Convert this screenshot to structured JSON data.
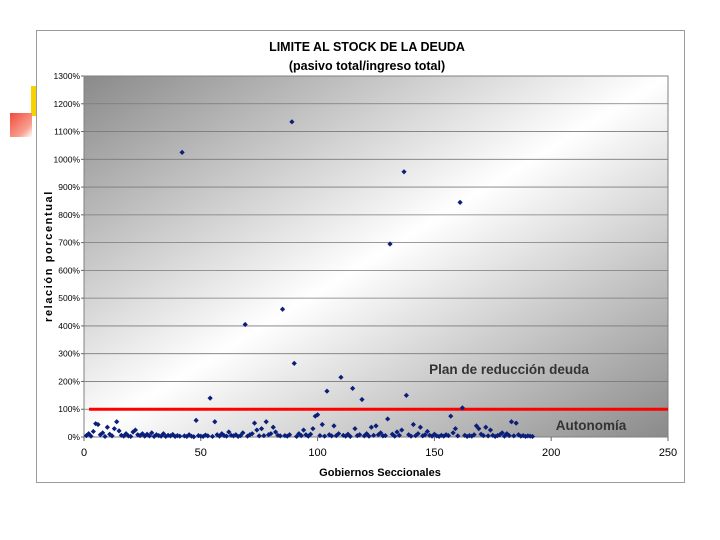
{
  "chart_data": {
    "type": "scatter",
    "title": "LIMITE AL STOCK DE LA DEUDA",
    "subtitle": "(pasivo total/ingreso total)",
    "xlabel": "Gobiernos Seccionales",
    "ylabel": "relación porcentual",
    "xlim": [
      0,
      250
    ],
    "ylim": [
      0,
      1300
    ],
    "x_ticks": [
      "0",
      "50",
      "100",
      "150",
      "200",
      "250"
    ],
    "x_tick_values": [
      0,
      50,
      100,
      150,
      200,
      250
    ],
    "y_ticks": [
      "0%",
      "100%",
      "200%",
      "300%",
      "400%",
      "500%",
      "600%",
      "700%",
      "800%",
      "900%",
      "1000%",
      "1100%",
      "1200%",
      "1300%"
    ],
    "y_tick_values": [
      0,
      100,
      200,
      300,
      400,
      500,
      600,
      700,
      800,
      900,
      1000,
      1100,
      1200,
      1300
    ],
    "grid": "horizontal",
    "reference_line": {
      "y": 100,
      "color": "#ff0000"
    },
    "annotations": {
      "upper": "Plan de reducción deuda",
      "lower": "Autonomía"
    },
    "marker_color": "#0a1e7a",
    "series": [
      {
        "points": [
          [
            1,
            5
          ],
          [
            2,
            12
          ],
          [
            3,
            3
          ],
          [
            4,
            20
          ],
          [
            5,
            48
          ],
          [
            6,
            45
          ],
          [
            7,
            8
          ],
          [
            8,
            15
          ],
          [
            9,
            2
          ],
          [
            10,
            35
          ],
          [
            11,
            10
          ],
          [
            12,
            4
          ],
          [
            13,
            30
          ],
          [
            14,
            55
          ],
          [
            15,
            22
          ],
          [
            16,
            6
          ],
          [
            17,
            3
          ],
          [
            18,
            12
          ],
          [
            19,
            4
          ],
          [
            20,
            2
          ],
          [
            21,
            18
          ],
          [
            22,
            25
          ],
          [
            23,
            8
          ],
          [
            24,
            5
          ],
          [
            25,
            12
          ],
          [
            26,
            3
          ],
          [
            27,
            10
          ],
          [
            28,
            4
          ],
          [
            29,
            15
          ],
          [
            30,
            2
          ],
          [
            31,
            8
          ],
          [
            32,
            5
          ],
          [
            33,
            3
          ],
          [
            34,
            12
          ],
          [
            35,
            2
          ],
          [
            36,
            6
          ],
          [
            37,
            4
          ],
          [
            38,
            9
          ],
          [
            39,
            2
          ],
          [
            40,
            5
          ],
          [
            41,
            3
          ],
          [
            42,
            1025
          ],
          [
            43,
            4
          ],
          [
            44,
            2
          ],
          [
            45,
            8
          ],
          [
            46,
            3
          ],
          [
            47,
            1
          ],
          [
            48,
            60
          ],
          [
            49,
            5
          ],
          [
            50,
            3
          ],
          [
            51,
            2
          ],
          [
            52,
            7
          ],
          [
            53,
            4
          ],
          [
            54,
            140
          ],
          [
            55,
            2
          ],
          [
            56,
            55
          ],
          [
            57,
            8
          ],
          [
            58,
            3
          ],
          [
            59,
            12
          ],
          [
            60,
            5
          ],
          [
            61,
            3
          ],
          [
            62,
            18
          ],
          [
            63,
            6
          ],
          [
            64,
            4
          ],
          [
            65,
            8
          ],
          [
            66,
            2
          ],
          [
            67,
            5
          ],
          [
            68,
            15
          ],
          [
            69,
            405
          ],
          [
            70,
            3
          ],
          [
            71,
            8
          ],
          [
            72,
            12
          ],
          [
            73,
            50
          ],
          [
            74,
            25
          ],
          [
            75,
            4
          ],
          [
            76,
            30
          ],
          [
            77,
            5
          ],
          [
            78,
            55
          ],
          [
            79,
            8
          ],
          [
            80,
            12
          ],
          [
            81,
            35
          ],
          [
            82,
            18
          ],
          [
            83,
            6
          ],
          [
            84,
            4
          ],
          [
            85,
            460
          ],
          [
            86,
            5
          ],
          [
            87,
            3
          ],
          [
            88,
            8
          ],
          [
            89,
            1135
          ],
          [
            90,
            265
          ],
          [
            91,
            2
          ],
          [
            92,
            12
          ],
          [
            93,
            5
          ],
          [
            94,
            25
          ],
          [
            95,
            8
          ],
          [
            96,
            3
          ],
          [
            97,
            10
          ],
          [
            98,
            30
          ],
          [
            99,
            75
          ],
          [
            100,
            80
          ],
          [
            101,
            5
          ],
          [
            102,
            45
          ],
          [
            103,
            3
          ],
          [
            104,
            165
          ],
          [
            105,
            8
          ],
          [
            106,
            4
          ],
          [
            107,
            40
          ],
          [
            108,
            5
          ],
          [
            109,
            12
          ],
          [
            110,
            215
          ],
          [
            111,
            6
          ],
          [
            112,
            3
          ],
          [
            113,
            10
          ],
          [
            114,
            2
          ],
          [
            115,
            175
          ],
          [
            116,
            30
          ],
          [
            117,
            5
          ],
          [
            118,
            8
          ],
          [
            119,
            135
          ],
          [
            120,
            4
          ],
          [
            121,
            12
          ],
          [
            122,
            3
          ],
          [
            123,
            35
          ],
          [
            124,
            6
          ],
          [
            125,
            40
          ],
          [
            126,
            8
          ],
          [
            127,
            15
          ],
          [
            128,
            4
          ],
          [
            129,
            5
          ],
          [
            130,
            65
          ],
          [
            131,
            695
          ],
          [
            132,
            10
          ],
          [
            133,
            3
          ],
          [
            134,
            18
          ],
          [
            135,
            6
          ],
          [
            136,
            25
          ],
          [
            137,
            955
          ],
          [
            138,
            150
          ],
          [
            139,
            8
          ],
          [
            140,
            3
          ],
          [
            141,
            45
          ],
          [
            142,
            5
          ],
          [
            143,
            12
          ],
          [
            144,
            35
          ],
          [
            145,
            4
          ],
          [
            146,
            8
          ],
          [
            147,
            20
          ],
          [
            148,
            6
          ],
          [
            149,
            3
          ],
          [
            150,
            10
          ],
          [
            151,
            4
          ],
          [
            152,
            2
          ],
          [
            153,
            6
          ],
          [
            154,
            3
          ],
          [
            155,
            8
          ],
          [
            156,
            5
          ],
          [
            157,
            75
          ],
          [
            158,
            15
          ],
          [
            159,
            30
          ],
          [
            160,
            4
          ],
          [
            161,
            845
          ],
          [
            162,
            105
          ],
          [
            163,
            6
          ],
          [
            164,
            2
          ],
          [
            165,
            5
          ],
          [
            166,
            3
          ],
          [
            167,
            8
          ],
          [
            168,
            40
          ],
          [
            169,
            30
          ],
          [
            170,
            10
          ],
          [
            171,
            5
          ],
          [
            172,
            35
          ],
          [
            173,
            4
          ],
          [
            174,
            25
          ],
          [
            175,
            6
          ],
          [
            176,
            2
          ],
          [
            177,
            5
          ],
          [
            178,
            8
          ],
          [
            179,
            15
          ],
          [
            180,
            3
          ],
          [
            181,
            12
          ],
          [
            182,
            5
          ],
          [
            183,
            55
          ],
          [
            184,
            4
          ],
          [
            185,
            50
          ],
          [
            186,
            8
          ],
          [
            187,
            3
          ],
          [
            188,
            5
          ],
          [
            189,
            2
          ],
          [
            190,
            4
          ],
          [
            191,
            3
          ],
          [
            192,
            2
          ]
        ]
      }
    ]
  }
}
